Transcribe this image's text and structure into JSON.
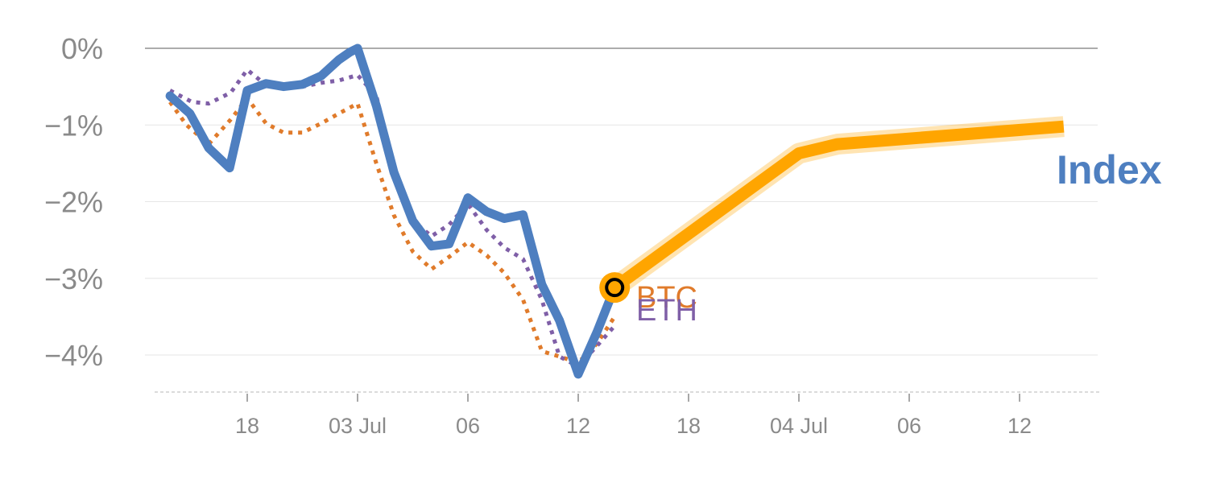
{
  "chart_data": {
    "type": "line",
    "y_ticks": [
      "0%",
      "−1%",
      "−2%",
      "−3%",
      "−4%"
    ],
    "y_tick_values": [
      0,
      -1,
      -2,
      -3,
      -4
    ],
    "ylim": [
      -4.5,
      0
    ],
    "x_tick_labels": [
      "18",
      "03 Jul",
      "06",
      "12",
      "18",
      "04 Jul",
      "06",
      "12"
    ],
    "x_tick_index": [
      0,
      1,
      2,
      3,
      4,
      5,
      6,
      7
    ],
    "x_range": [
      -0.9,
      7.7
    ],
    "series": [
      {
        "name": "Index",
        "color": "#4e7fc0",
        "style": "solid",
        "x": [
          -0.7,
          -0.52,
          -0.35,
          -0.16,
          0.0,
          0.17,
          0.33,
          0.5,
          0.67,
          0.83,
          0.93,
          1.0,
          1.17,
          1.33,
          1.5,
          1.67,
          1.83,
          2.0,
          2.17,
          2.33,
          2.5,
          2.67,
          2.83,
          3.0,
          3.17,
          3.33
        ],
        "values": [
          -0.62,
          -0.85,
          -1.3,
          -1.56,
          -0.55,
          -0.46,
          -0.5,
          -0.47,
          -0.36,
          -0.15,
          -0.05,
          0.0,
          -0.75,
          -1.62,
          -2.25,
          -2.58,
          -2.55,
          -1.95,
          -2.13,
          -2.22,
          -2.17,
          -3.08,
          -3.55,
          -4.25,
          -3.7,
          -3.12
        ]
      },
      {
        "name": "BTC",
        "color": "#e07b2b",
        "style": "dotted",
        "x": [
          -0.7,
          -0.55,
          -0.35,
          -0.15,
          0.0,
          0.17,
          0.33,
          0.5,
          0.67,
          0.83,
          1.0,
          1.17,
          1.33,
          1.5,
          1.67,
          1.83,
          2.0,
          2.17,
          2.33,
          2.5,
          2.67,
          2.83,
          3.0,
          3.17,
          3.33
        ],
        "values": [
          -0.7,
          -1.0,
          -1.25,
          -0.93,
          -0.65,
          -0.98,
          -1.1,
          -1.1,
          -0.98,
          -0.85,
          -0.72,
          -1.5,
          -2.18,
          -2.65,
          -2.88,
          -2.72,
          -2.53,
          -2.7,
          -2.93,
          -3.28,
          -3.95,
          -4.02,
          -4.1,
          -3.85,
          -3.5
        ]
      },
      {
        "name": "ETH",
        "color": "#7f5fa7",
        "style": "dotted",
        "x": [
          -0.7,
          -0.5,
          -0.35,
          -0.15,
          0.0,
          0.17,
          0.33,
          0.5,
          0.67,
          0.83,
          1.0,
          1.17,
          1.33,
          1.5,
          1.67,
          1.83,
          2.0,
          2.17,
          2.33,
          2.5,
          2.67,
          2.83,
          3.0,
          3.17,
          3.33
        ],
        "values": [
          -0.55,
          -0.7,
          -0.72,
          -0.58,
          -0.28,
          -0.48,
          -0.52,
          -0.5,
          -0.45,
          -0.42,
          -0.35,
          -0.62,
          -1.55,
          -2.25,
          -2.45,
          -2.3,
          -2.03,
          -2.37,
          -2.6,
          -2.75,
          -3.28,
          -4.02,
          -4.15,
          -3.88,
          -3.62
        ]
      },
      {
        "name": "Index",
        "color": "#ffa500",
        "style": "highlight",
        "x": [
          3.33,
          5.0,
          5.35,
          7.4
        ],
        "values": [
          -3.12,
          -1.37,
          -1.25,
          -1.02
        ]
      }
    ],
    "labels": [
      {
        "text": "BTC",
        "color": "#e07b2b"
      },
      {
        "text": "ETH",
        "color": "#7f5fa7"
      },
      {
        "text": "Index",
        "color": "#4e7fc0"
      }
    ],
    "marker": {
      "x": 3.33,
      "y": -3.12,
      "fill": "#ffa500"
    },
    "grid": true
  }
}
